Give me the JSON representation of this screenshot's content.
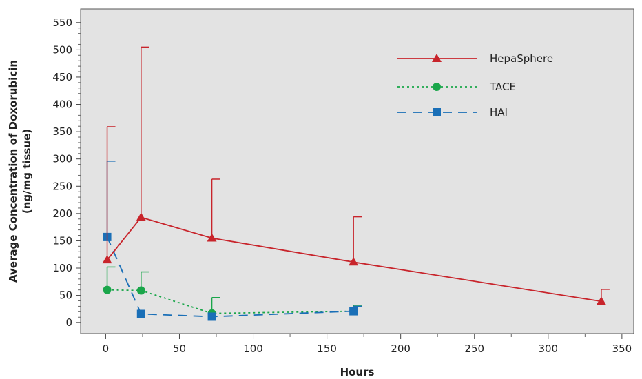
{
  "chart_data": {
    "type": "line",
    "xlabel": "Hours",
    "ylabel_line1": "Average Concentration of Doxorubicin",
    "ylabel_line2": "(ng/mg tissue)",
    "xlim": [
      -17,
      358
    ],
    "ylim": [
      -20,
      575
    ],
    "xticks": [
      0,
      50,
      100,
      150,
      200,
      250,
      300,
      350
    ],
    "yticks": [
      0,
      50,
      100,
      150,
      200,
      250,
      300,
      350,
      400,
      450,
      500,
      550
    ],
    "xtick_labels": [
      "0",
      "50",
      "100",
      "150",
      "200",
      "250",
      "300",
      "350"
    ],
    "ytick_labels": [
      "0",
      "50",
      "100",
      "150",
      "200",
      "250",
      "300",
      "350",
      "400",
      "450",
      "500",
      "550"
    ],
    "grid": false,
    "background": "#e3e3e3",
    "legend_position": "top-right",
    "series": [
      {
        "name": "HepaSphere",
        "color": "#c8242b",
        "marker": "triangle",
        "dash": "solid",
        "x": [
          1,
          24,
          72,
          168,
          336
        ],
        "y": [
          115,
          193,
          155,
          111,
          39
        ],
        "err_upper": [
          359,
          505,
          263,
          194,
          61
        ]
      },
      {
        "name": "TACE",
        "color": "#1aa64a",
        "marker": "circle",
        "dash": "dotted",
        "x": [
          1,
          24,
          72,
          168
        ],
        "y": [
          60,
          59,
          17,
          21
        ],
        "err_upper": [
          102,
          93,
          46,
          32
        ]
      },
      {
        "name": "HAI",
        "color": "#1a6fb7",
        "marker": "square",
        "dash": "dashed",
        "x": [
          1,
          24,
          72,
          168
        ],
        "y": [
          157,
          16,
          11,
          21
        ],
        "err_upper": [
          296,
          null,
          null,
          30
        ]
      }
    ]
  }
}
